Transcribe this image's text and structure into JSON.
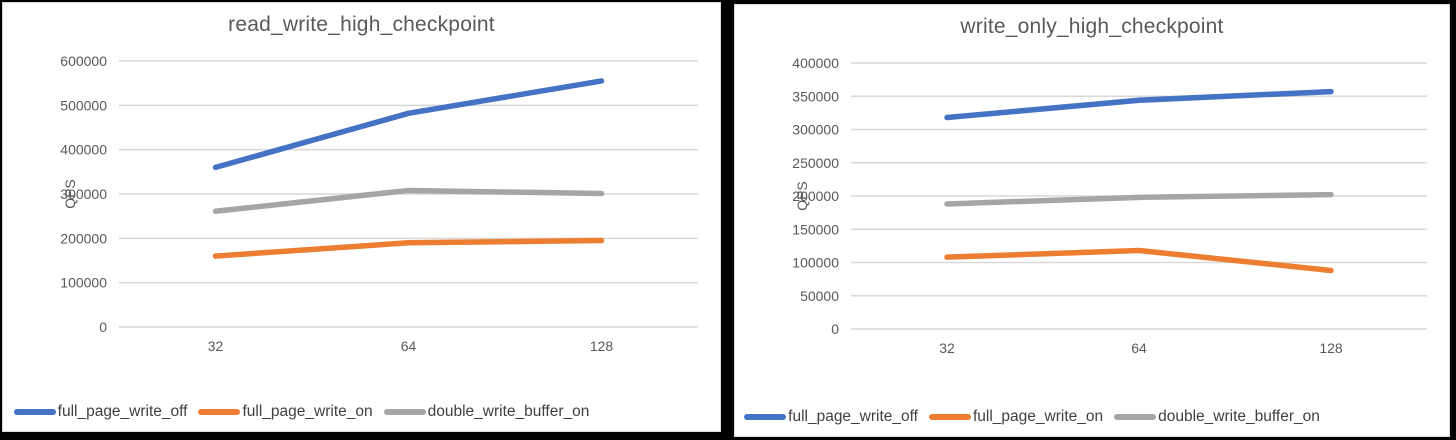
{
  "page": {
    "background_color": "#000000",
    "panel_color": "#ffffff",
    "panel_border_color": "#d9d9d9",
    "gridline_color": "#d9d9d9",
    "title_color": "#595959",
    "tick_label_color": "#595959",
    "legend_text_color": "#404040"
  },
  "chart_data": [
    {
      "type": "line",
      "title": "read_write_high_checkpoint",
      "xlabel": "",
      "ylabel": "QPS",
      "categories": [
        "32",
        "64",
        "128"
      ],
      "ylim": [
        0,
        600000
      ],
      "yticks": [
        0,
        100000,
        200000,
        300000,
        400000,
        500000,
        600000
      ],
      "grid": true,
      "legend_position": "bottom",
      "series": [
        {
          "name": "full_page_write_off",
          "color": "#4472C4",
          "values": [
            360000,
            482000,
            555000
          ]
        },
        {
          "name": "full_page_write_on",
          "color": "#ED7D31",
          "values": [
            160000,
            190000,
            195000
          ]
        },
        {
          "name": "double_write_buffer_on",
          "color": "#A5A5A5",
          "values": [
            261000,
            308000,
            301000
          ]
        }
      ]
    },
    {
      "type": "line",
      "title": "write_only_high_checkpoint",
      "xlabel": "",
      "ylabel": "QPS",
      "categories": [
        "32",
        "64",
        "128"
      ],
      "ylim": [
        0,
        400000
      ],
      "yticks": [
        0,
        50000,
        100000,
        150000,
        200000,
        250000,
        300000,
        350000,
        400000
      ],
      "grid": true,
      "legend_position": "bottom",
      "series": [
        {
          "name": "full_page_write_off",
          "color": "#4472C4",
          "values": [
            318000,
            344000,
            357000
          ]
        },
        {
          "name": "full_page_write_on",
          "color": "#ED7D31",
          "values": [
            108000,
            118000,
            88000
          ]
        },
        {
          "name": "double_write_buffer_on",
          "color": "#A5A5A5",
          "values": [
            188000,
            198000,
            202000
          ]
        }
      ]
    }
  ]
}
